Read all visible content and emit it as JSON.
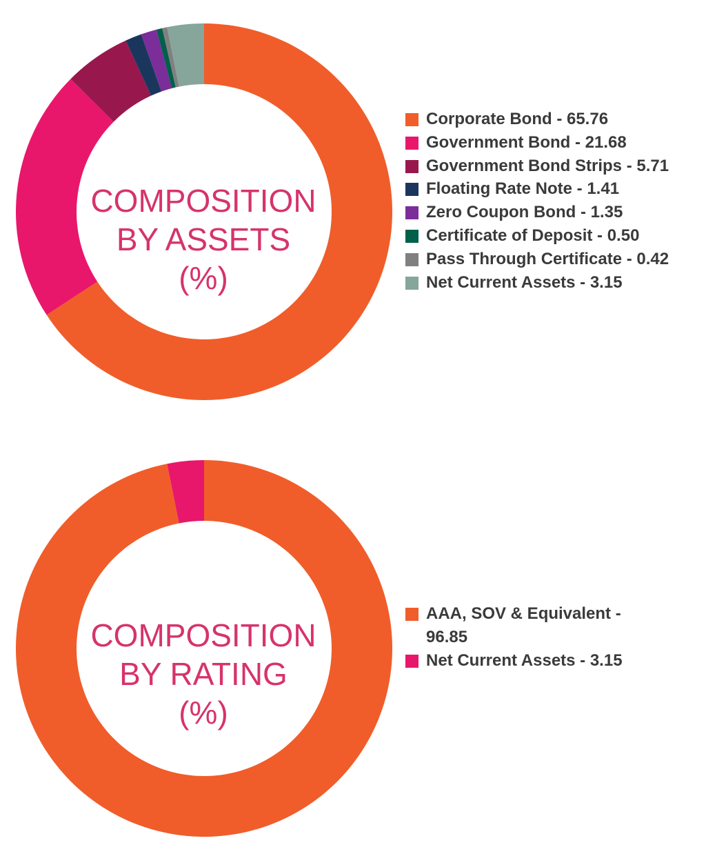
{
  "chart_data": [
    {
      "type": "pie",
      "title": "",
      "center_label": [
        "COMPOSITION",
        "BY ASSETS",
        "(%)"
      ],
      "categories": [
        "Corporate Bond",
        "Government Bond",
        "Government Bond Strips",
        "Floating Rate Note",
        "Zero Coupon Bond",
        "Certificate of Deposit",
        "Pass Through Certificate",
        "Net Current Assets"
      ],
      "values": [
        65.76,
        21.68,
        5.71,
        1.41,
        1.35,
        0.5,
        0.42,
        3.15
      ],
      "legend_labels": [
        "Corporate Bond - 65.76",
        "Government Bond - 21.68",
        "Government Bond Strips - 5.71",
        "Floating Rate Note - 1.41",
        "Zero Coupon Bond - 1.35",
        "Certificate of Deposit - 0.50",
        "Pass Through Certificate - 0.42",
        "Net Current Assets - 3.15"
      ],
      "colors": [
        "#f05d2a",
        "#e8176b",
        "#98184d",
        "#1b365d",
        "#7b2d9a",
        "#00604a",
        "#808080",
        "#86a59b"
      ],
      "legend_position": "right"
    },
    {
      "type": "pie",
      "title": "",
      "center_label": [
        "COMPOSITION",
        "BY RATING",
        "(%)"
      ],
      "categories": [
        "AAA, SOV & Equivalent",
        "Net Current Assets"
      ],
      "values": [
        96.85,
        3.15
      ],
      "legend_labels": [
        "AAA, SOV & Equivalent - 96.85",
        "Net Current Assets - 3.15"
      ],
      "colors": [
        "#f05d2a",
        "#e8176b"
      ],
      "legend_position": "right"
    }
  ]
}
